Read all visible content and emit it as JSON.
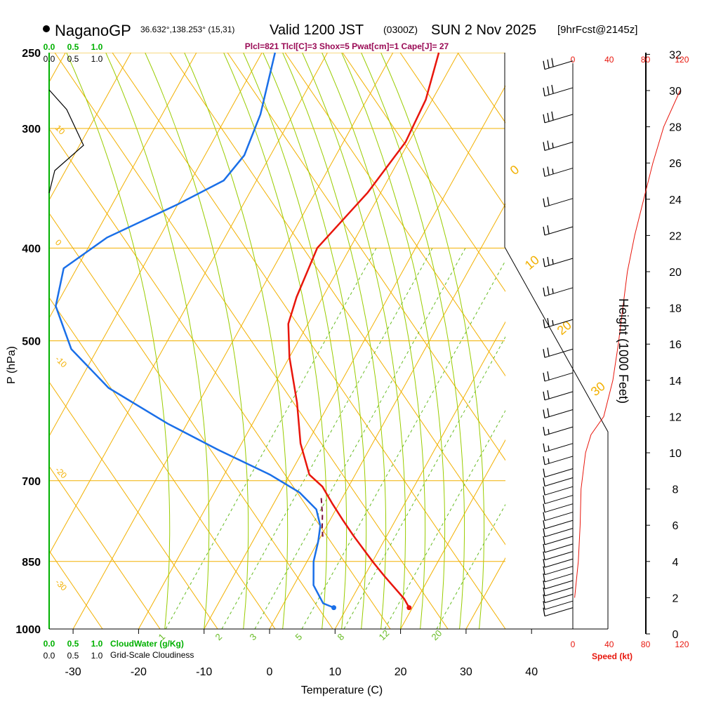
{
  "header": {
    "station": "NaganoGP",
    "coords": "36.632°,138.253° (15,31)",
    "valid": "Valid 1200 JST",
    "utc": "(0300Z)",
    "date": "SUN 2 Nov 2025",
    "forecast": "[9hrFcst@2145z]",
    "indices": "Plcl=821 Tlcl[C]=3 Shox=5 Pwat[cm]=1 Cape[J]= 27"
  },
  "colors": {
    "isotherm": "#f2b000",
    "dry_adiabat": "#f2b000",
    "moist_adiabat": "#99cc00",
    "mixing_ratio": "#66bb22",
    "temperature": "#e8160c",
    "dewpoint": "#1a6fe8",
    "parcel": "#7a1038",
    "cloud": "#00b000",
    "speed": "#e8160c",
    "axis": "#000000"
  },
  "chart_data": {
    "type": "line",
    "title": "NaganoGP Valid 1200 JST (0300Z) SUN 2 Nov 2025",
    "xlabel": "Temperature (C)",
    "ylabel": "P (hPa)",
    "xlim": [
      -35,
      52
    ],
    "pressure_ticks": [
      "250",
      "300",
      "400",
      "500",
      "700",
      "850",
      "1000"
    ],
    "temp_ticks": [
      "-30",
      "-20",
      "-10",
      "0",
      "10",
      "20",
      "30",
      "40"
    ],
    "isotherm_labels": [
      "10",
      "0",
      "-10",
      "-20",
      "-30"
    ],
    "theta_labels": [
      "0",
      "10",
      "20",
      "30"
    ],
    "mixing_ratio_labels": [
      "1",
      "2",
      "3",
      "5",
      "8",
      "12",
      "20"
    ],
    "series": [
      {
        "name": "temperature",
        "points": [
          [
            -23,
            250
          ],
          [
            -21,
            280
          ],
          [
            -20.5,
            310
          ],
          [
            -22,
            350
          ],
          [
            -25,
            400
          ],
          [
            -24,
            450
          ],
          [
            -23,
            480
          ],
          [
            -20,
            520
          ],
          [
            -15,
            580
          ],
          [
            -11,
            640
          ],
          [
            -7,
            690
          ],
          [
            -4,
            710
          ],
          [
            -1,
            740
          ],
          [
            2,
            770
          ],
          [
            5,
            800
          ],
          [
            10,
            850
          ],
          [
            13,
            880
          ],
          [
            18,
            930
          ],
          [
            19.5,
            950
          ]
        ]
      },
      {
        "name": "dewpoint",
        "points": [
          [
            -48,
            250
          ],
          [
            -45,
            290
          ],
          [
            -44,
            320
          ],
          [
            -45,
            340
          ],
          [
            -50,
            360
          ],
          [
            -58,
            390
          ],
          [
            -62,
            420
          ],
          [
            -60,
            460
          ],
          [
            -54,
            510
          ],
          [
            -45,
            560
          ],
          [
            -33,
            610
          ],
          [
            -23,
            650
          ],
          [
            -13,
            690
          ],
          [
            -7,
            720
          ],
          [
            -3,
            750
          ],
          [
            -1,
            780
          ],
          [
            0,
            810
          ],
          [
            1,
            850
          ],
          [
            3,
            900
          ],
          [
            6,
            940
          ],
          [
            8,
            950
          ]
        ]
      },
      {
        "name": "parcel",
        "points": [
          [
            -3.2,
            730
          ],
          [
            -1.6,
            760
          ],
          [
            -0.5,
            785
          ],
          [
            0.5,
            805
          ]
        ]
      }
    ],
    "cloud_water": {
      "label": "CloudWater (g/Kg)",
      "ticks": [
        "0.0",
        "0.5",
        "1.0"
      ]
    },
    "cloudiness": {
      "label": "Grid-Scale Cloudiness",
      "ticks": [
        "0.0",
        "0.5",
        "1.0"
      ]
    },
    "height_axis": {
      "label": "Height (1000 Feet)",
      "ticks": [
        "0",
        "2",
        "4",
        "6",
        "8",
        "10",
        "12",
        "14",
        "16",
        "18",
        "20",
        "22",
        "24",
        "26",
        "28",
        "30",
        "32"
      ]
    },
    "speed_axis": {
      "label": "Speed (kt)",
      "ticks": [
        "0",
        "40",
        "80",
        "120"
      ]
    },
    "wind_speed_profile": [
      [
        2,
        2
      ],
      [
        6,
        4
      ],
      [
        8,
        6
      ],
      [
        9,
        8
      ],
      [
        14,
        10
      ],
      [
        20,
        11
      ],
      [
        34,
        12
      ],
      [
        44,
        14
      ],
      [
        50,
        16
      ],
      [
        55,
        18
      ],
      [
        60,
        20
      ],
      [
        68,
        22
      ],
      [
        78,
        24
      ],
      [
        88,
        26
      ],
      [
        100,
        28
      ],
      [
        118,
        30
      ]
    ],
    "winds": [
      {
        "p": 255,
        "spd": 30
      },
      {
        "p": 272,
        "spd": 30
      },
      {
        "p": 290,
        "spd": 30
      },
      {
        "p": 310,
        "spd": 25
      },
      {
        "p": 330,
        "spd": 25
      },
      {
        "p": 355,
        "spd": 20
      },
      {
        "p": 380,
        "spd": 20
      },
      {
        "p": 410,
        "spd": 25
      },
      {
        "p": 440,
        "spd": 25
      },
      {
        "p": 475,
        "spd": 25
      },
      {
        "p": 510,
        "spd": 20
      },
      {
        "p": 540,
        "spd": 20
      },
      {
        "p": 565,
        "spd": 20
      },
      {
        "p": 590,
        "spd": 20
      },
      {
        "p": 615,
        "spd": 15
      },
      {
        "p": 640,
        "spd": 15
      },
      {
        "p": 660,
        "spd": 15
      },
      {
        "p": 680,
        "spd": 10
      },
      {
        "p": 695,
        "spd": 10
      },
      {
        "p": 710,
        "spd": 10
      },
      {
        "p": 725,
        "spd": 10
      },
      {
        "p": 740,
        "spd": 10
      },
      {
        "p": 755,
        "spd": 10
      },
      {
        "p": 770,
        "spd": 10
      },
      {
        "p": 785,
        "spd": 10
      },
      {
        "p": 800,
        "spd": 10
      },
      {
        "p": 815,
        "spd": 10
      },
      {
        "p": 830,
        "spd": 10
      },
      {
        "p": 845,
        "spd": 10
      },
      {
        "p": 860,
        "spd": 10
      },
      {
        "p": 875,
        "spd": 10
      },
      {
        "p": 890,
        "spd": 10
      },
      {
        "p": 905,
        "spd": 10
      },
      {
        "p": 920,
        "spd": 10
      },
      {
        "p": 935,
        "spd": 10
      },
      {
        "p": 950,
        "spd": 10
      }
    ]
  }
}
